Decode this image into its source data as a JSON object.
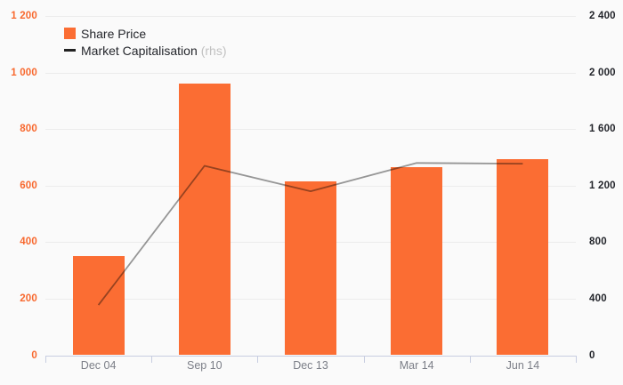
{
  "colors": {
    "background": "#fafafa",
    "bar_orange": "#fb6d33",
    "left_axis_label": "#f8692f",
    "right_axis_label": "#23252b",
    "line_gray": "#999999",
    "legend_dash": "#222222",
    "gridline": "#ececec",
    "axis_line": "#c7cde0",
    "x_label": "#7b7e87"
  },
  "legend": {
    "share_price_label": "Share Price",
    "market_cap_label": "Market Capitalisation",
    "market_cap_suffix": "(rhs)"
  },
  "chart_data": {
    "type": "bar+line",
    "categories": [
      "Dec 04",
      "Sep 10",
      "Dec 13",
      "Mar 14",
      "Jun 14"
    ],
    "series": [
      {
        "name": "Share Price",
        "type": "bar",
        "axis": "left",
        "color": "#fb6d33",
        "values": [
          350,
          960,
          615,
          665,
          695
        ]
      },
      {
        "name": "Market Capitalisation (rhs)",
        "type": "line",
        "axis": "right",
        "color": "#999999",
        "values": [
          355,
          1340,
          1160,
          1360,
          1355
        ]
      }
    ],
    "left_axis": {
      "min": 0,
      "max": 1200,
      "step": 200,
      "ticks": [
        0,
        200,
        400,
        600,
        800,
        1000,
        1200
      ],
      "tick_labels": [
        "0",
        "200",
        "400",
        "600",
        "800",
        "1 000",
        "1 200"
      ]
    },
    "right_axis": {
      "min": 0,
      "max": 2400,
      "step": 400,
      "ticks": [
        0,
        400,
        800,
        1200,
        1600,
        2000,
        2400
      ],
      "tick_labels": [
        "0",
        "400",
        "800",
        "1 200",
        "1 600",
        "2 000",
        "2 400"
      ]
    },
    "grid": true,
    "legend_position": "top-left",
    "title": "",
    "xlabel": "",
    "ylabel": ""
  }
}
